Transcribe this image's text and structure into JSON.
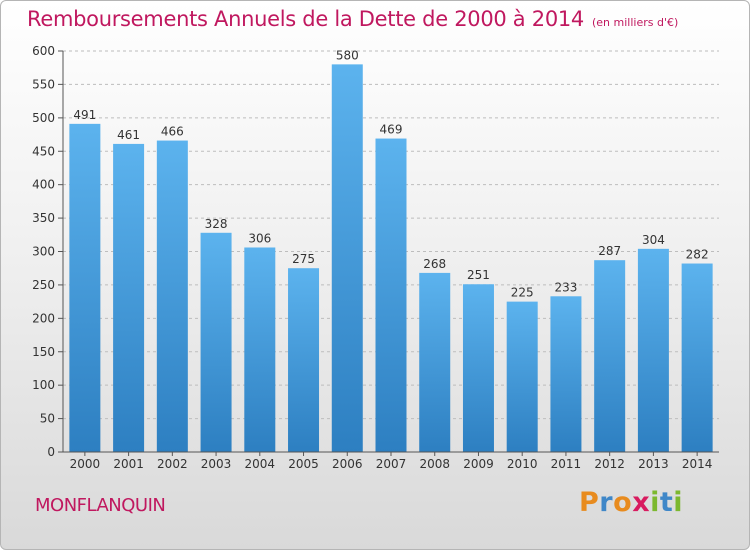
{
  "title": "Remboursements Annuels de la Dette de 2000 à 2014",
  "subtitle": "(en milliers d'€)",
  "city": "MONFLANQUIN",
  "logo": {
    "letters": [
      "P",
      "r",
      "o",
      "x",
      "i",
      "t",
      "i"
    ],
    "colors": [
      "#e88b1e",
      "#3f87c8",
      "#e88b1e",
      "#d81b5f",
      "#7cb82f",
      "#3f87c8",
      "#7cb82f"
    ]
  },
  "colors": {
    "bar_light": "#5cb3ee",
    "bar_dark": "#2d7fc1",
    "title": "#c0185f",
    "grid": "#bdbdbd"
  },
  "chart_data": {
    "type": "bar",
    "categories": [
      "2000",
      "2001",
      "2002",
      "2003",
      "2004",
      "2005",
      "2006",
      "2007",
      "2008",
      "2009",
      "2010",
      "2011",
      "2012",
      "2013",
      "2014"
    ],
    "values": [
      491,
      461,
      466,
      328,
      306,
      275,
      580,
      469,
      268,
      251,
      225,
      233,
      287,
      304,
      282
    ],
    "ylim": [
      0,
      600
    ],
    "yticks": [
      0,
      50,
      100,
      150,
      200,
      250,
      300,
      350,
      400,
      450,
      500,
      550,
      600
    ],
    "grid": true,
    "xlabel": "",
    "ylabel": ""
  }
}
